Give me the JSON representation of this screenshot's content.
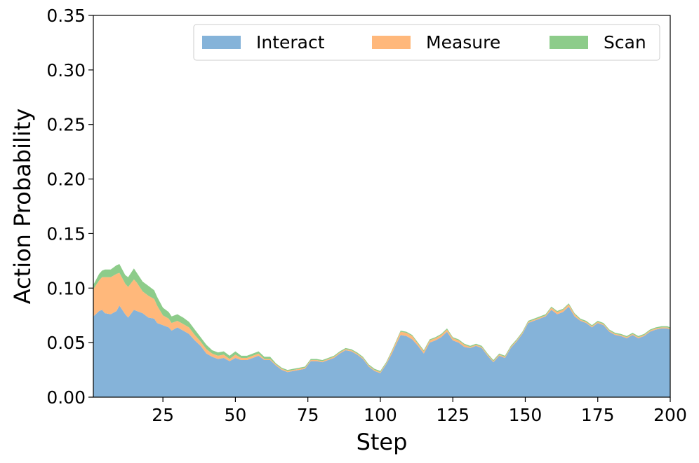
{
  "chart_data": {
    "type": "area",
    "stacked": true,
    "xlabel": "Step",
    "ylabel": "Action Probability",
    "xlim": [
      1,
      200
    ],
    "ylim": [
      0,
      0.35
    ],
    "xticks": [
      25,
      50,
      75,
      100,
      125,
      150,
      175,
      200
    ],
    "yticks": [
      0.0,
      0.05,
      0.1,
      0.15,
      0.2,
      0.25,
      0.3,
      0.35
    ],
    "ytick_labels": [
      "0.00",
      "0.05",
      "0.10",
      "0.15",
      "0.20",
      "0.25",
      "0.30",
      "0.35"
    ],
    "grid": false,
    "legend": {
      "placement": "top-right",
      "columns": 3
    },
    "x": [
      1,
      3,
      4,
      5,
      7,
      9,
      10,
      12,
      13,
      15,
      16,
      18,
      20,
      22,
      23,
      25,
      27,
      28,
      30,
      32,
      34,
      36,
      38,
      40,
      42,
      44,
      46,
      48,
      50,
      52,
      54,
      56,
      58,
      60,
      62,
      64,
      66,
      68,
      70,
      72,
      74,
      76,
      78,
      80,
      82,
      84,
      86,
      88,
      90,
      92,
      94,
      96,
      98,
      100,
      102,
      104,
      105,
      107,
      109,
      111,
      113,
      115,
      117,
      119,
      121,
      123,
      125,
      127,
      129,
      131,
      133,
      135,
      137,
      139,
      141,
      143,
      145,
      147,
      149,
      151,
      153,
      155,
      157,
      159,
      161,
      163,
      165,
      167,
      169,
      171,
      173,
      175,
      177,
      179,
      181,
      183,
      185,
      187,
      189,
      191,
      193,
      195,
      197,
      199,
      200
    ],
    "series": [
      {
        "name": "Interact",
        "color": "#85b3d9",
        "values": [
          0.074,
          0.079,
          0.08,
          0.077,
          0.076,
          0.079,
          0.084,
          0.076,
          0.073,
          0.08,
          0.079,
          0.077,
          0.073,
          0.072,
          0.068,
          0.066,
          0.064,
          0.061,
          0.064,
          0.061,
          0.058,
          0.052,
          0.047,
          0.04,
          0.037,
          0.035,
          0.036,
          0.033,
          0.036,
          0.034,
          0.034,
          0.036,
          0.038,
          0.034,
          0.034,
          0.029,
          0.025,
          0.023,
          0.024,
          0.025,
          0.026,
          0.033,
          0.033,
          0.032,
          0.034,
          0.036,
          0.04,
          0.043,
          0.042,
          0.039,
          0.035,
          0.028,
          0.024,
          0.022,
          0.03,
          0.04,
          0.046,
          0.057,
          0.056,
          0.053,
          0.047,
          0.04,
          0.05,
          0.052,
          0.055,
          0.06,
          0.052,
          0.05,
          0.046,
          0.045,
          0.047,
          0.045,
          0.038,
          0.032,
          0.038,
          0.036,
          0.045,
          0.051,
          0.058,
          0.068,
          0.07,
          0.072,
          0.074,
          0.08,
          0.076,
          0.078,
          0.083,
          0.074,
          0.07,
          0.068,
          0.064,
          0.068,
          0.066,
          0.06,
          0.057,
          0.056,
          0.054,
          0.057,
          0.054,
          0.056,
          0.06,
          0.062,
          0.063,
          0.063,
          0.062
        ]
      },
      {
        "name": "Measure",
        "color": "#ffb87b",
        "values": [
          0.025,
          0.028,
          0.03,
          0.033,
          0.034,
          0.034,
          0.03,
          0.028,
          0.028,
          0.028,
          0.026,
          0.02,
          0.02,
          0.018,
          0.016,
          0.009,
          0.008,
          0.007,
          0.006,
          0.006,
          0.006,
          0.005,
          0.004,
          0.004,
          0.003,
          0.003,
          0.003,
          0.002,
          0.003,
          0.002,
          0.002,
          0.002,
          0.002,
          0.001,
          0.001,
          0.001,
          0.001,
          0.001,
          0.001,
          0.001,
          0.001,
          0.001,
          0.001,
          0.001,
          0.001,
          0.001,
          0.001,
          0.001,
          0.001,
          0.001,
          0.001,
          0.001,
          0.001,
          0.001,
          0.001,
          0.002,
          0.002,
          0.003,
          0.003,
          0.003,
          0.002,
          0.002,
          0.002,
          0.002,
          0.002,
          0.002,
          0.002,
          0.002,
          0.002,
          0.001,
          0.001,
          0.001,
          0.001,
          0.001,
          0.001,
          0.001,
          0.001,
          0.001,
          0.001,
          0.001,
          0.001,
          0.001,
          0.001,
          0.002,
          0.002,
          0.002,
          0.002,
          0.002,
          0.001,
          0.001,
          0.001,
          0.001,
          0.001,
          0.001,
          0.001,
          0.001,
          0.001,
          0.001,
          0.001,
          0.001,
          0.001,
          0.001,
          0.001,
          0.001,
          0.001
        ]
      },
      {
        "name": "Scan",
        "color": "#8dcc8a",
        "values": [
          0.004,
          0.006,
          0.006,
          0.007,
          0.007,
          0.008,
          0.008,
          0.008,
          0.009,
          0.01,
          0.009,
          0.009,
          0.009,
          0.008,
          0.008,
          0.007,
          0.006,
          0.006,
          0.006,
          0.006,
          0.005,
          0.005,
          0.004,
          0.004,
          0.003,
          0.003,
          0.003,
          0.003,
          0.003,
          0.002,
          0.002,
          0.002,
          0.002,
          0.002,
          0.002,
          0.001,
          0.001,
          0.001,
          0.001,
          0.001,
          0.001,
          0.001,
          0.001,
          0.001,
          0.001,
          0.001,
          0.001,
          0.001,
          0.001,
          0.001,
          0.001,
          0.001,
          0.001,
          0.001,
          0.001,
          0.001,
          0.001,
          0.001,
          0.001,
          0.001,
          0.001,
          0.001,
          0.001,
          0.001,
          0.001,
          0.001,
          0.001,
          0.001,
          0.001,
          0.001,
          0.001,
          0.001,
          0.001,
          0.001,
          0.001,
          0.001,
          0.001,
          0.001,
          0.001,
          0.001,
          0.001,
          0.001,
          0.001,
          0.001,
          0.001,
          0.001,
          0.001,
          0.001,
          0.001,
          0.001,
          0.001,
          0.001,
          0.001,
          0.001,
          0.001,
          0.001,
          0.001,
          0.001,
          0.001,
          0.001,
          0.001,
          0.001,
          0.001,
          0.001,
          0.001
        ]
      }
    ]
  }
}
